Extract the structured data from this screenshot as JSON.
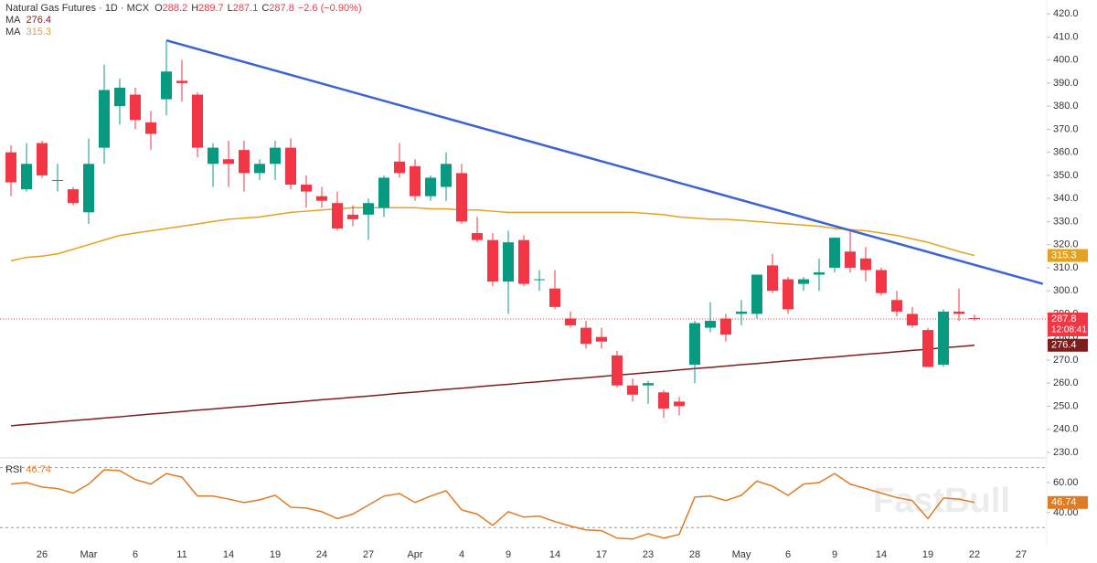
{
  "chart_data": [
    {
      "type": "candlestick",
      "title": "Natural Gas Futures · 1D · MCX",
      "ohlc_labels": [
        "O",
        "H",
        "L",
        "C"
      ],
      "change_label": "−2.6 (−0.90%)",
      "countdown": "12:08:41",
      "watermark": "FastBull",
      "categories": [
        null,
        null,
        "26",
        null,
        null,
        "Mar",
        null,
        null,
        "6",
        null,
        null,
        "11",
        null,
        null,
        "14",
        null,
        null,
        "19",
        null,
        null,
        "24",
        null,
        null,
        "27",
        null,
        null,
        "Apr",
        null,
        null,
        "4",
        null,
        null,
        "9",
        null,
        null,
        "14",
        null,
        null,
        "17",
        null,
        null,
        "23",
        null,
        null,
        "28",
        null,
        null,
        "May",
        null,
        null,
        "6",
        null,
        null,
        "9",
        null,
        null,
        "14",
        null,
        null,
        "19",
        null,
        null,
        "22",
        null,
        null,
        "27"
      ],
      "open": [
        360,
        344,
        364,
        348,
        344,
        334,
        362,
        380,
        385,
        373,
        383,
        391,
        385,
        355,
        357,
        361,
        351,
        355,
        362,
        346,
        341,
        338,
        333,
        333,
        336,
        356,
        354,
        341,
        345,
        351,
        325,
        322,
        304,
        322,
        305,
        301,
        288,
        284,
        280,
        272,
        259,
        259,
        256,
        252,
        268,
        284,
        288,
        290,
        290,
        311,
        305,
        303,
        307,
        310,
        317,
        314,
        309,
        296,
        290,
        283,
        268,
        291,
        288.2,
        null,
        null,
        null
      ],
      "high": [
        363,
        364,
        365,
        355,
        345,
        366,
        398,
        392,
        388,
        378,
        408,
        400,
        386,
        364,
        365,
        365,
        357,
        365,
        366,
        350,
        345,
        343,
        337,
        340,
        350,
        364,
        357,
        350,
        360,
        355,
        332,
        325,
        326,
        324,
        309,
        309,
        291,
        287,
        284,
        274,
        262,
        261,
        257,
        254,
        287,
        295,
        290,
        296,
        307,
        316,
        306,
        306,
        314,
        323,
        326,
        319,
        310,
        300,
        293,
        284,
        292,
        301,
        289.7,
        null,
        null,
        null
      ],
      "low": [
        341,
        343,
        349,
        343,
        337,
        329,
        355,
        372,
        370,
        361,
        376,
        382,
        358,
        345,
        345,
        343,
        348,
        348,
        344,
        336,
        336,
        326,
        328,
        322,
        332,
        349,
        339,
        339,
        339,
        329,
        321,
        302,
        290,
        302,
        300,
        292,
        284,
        275,
        275,
        258,
        252,
        251,
        245,
        246,
        260,
        282,
        278,
        285,
        288,
        299,
        290,
        300,
        300,
        308,
        308,
        304,
        298,
        289,
        284,
        267,
        267,
        287,
        287.1,
        null,
        null,
        null
      ],
      "close": [
        347,
        355,
        350,
        348,
        338,
        355,
        387,
        388,
        374,
        368,
        395,
        390,
        362,
        362,
        355,
        351,
        355,
        362,
        346,
        343,
        339,
        327,
        331,
        338,
        349,
        351,
        341,
        349,
        355,
        330,
        322,
        304,
        321,
        303,
        305,
        293,
        285,
        277,
        278,
        259,
        255,
        260,
        249,
        250,
        286,
        287,
        281,
        291,
        307,
        300,
        292,
        305,
        308,
        323,
        310,
        309,
        299,
        291,
        285,
        267,
        291,
        290,
        287.8,
        null,
        null,
        null
      ],
      "up_color": "#089981",
      "down_color": "#f23645",
      "moving_averages": [
        {
          "name": "MA",
          "color": "#7f1d1d",
          "values": [
            241.5,
            242.1,
            242.6,
            243.2,
            243.8,
            244.3,
            244.9,
            245.4,
            246.0,
            246.6,
            247.1,
            247.7,
            248.3,
            248.8,
            249.4,
            249.9,
            250.5,
            251.1,
            251.6,
            252.2,
            252.8,
            253.3,
            253.9,
            254.4,
            255.0,
            255.6,
            256.1,
            256.7,
            257.3,
            257.8,
            258.4,
            259.0,
            259.5,
            260.1,
            260.6,
            261.2,
            261.8,
            262.3,
            262.9,
            263.5,
            264.0,
            264.6,
            265.1,
            265.7,
            266.3,
            266.8,
            267.4,
            268.0,
            268.5,
            269.1,
            269.7,
            270.2,
            270.8,
            271.3,
            271.9,
            272.5,
            273.0,
            273.6,
            274.2,
            274.7,
            275.3,
            275.8,
            276.4,
            null,
            null,
            null
          ]
        },
        {
          "name": "MA",
          "color": "#e5a21f",
          "values": [
            313,
            314.5,
            315,
            316,
            318,
            320,
            322,
            324,
            325,
            326,
            327,
            328,
            329,
            330,
            331,
            331.5,
            332,
            333,
            334,
            334.5,
            335,
            335.5,
            336,
            336,
            336,
            336,
            336,
            335.5,
            335.5,
            335,
            335,
            334.5,
            334,
            334,
            334,
            334,
            334,
            334,
            334,
            334,
            334,
            333.5,
            333,
            332,
            331.5,
            331,
            331,
            330.5,
            330,
            329.5,
            329,
            328.5,
            328,
            327,
            326.5,
            326,
            325,
            324,
            322.5,
            321,
            319,
            317,
            315.3,
            null,
            null,
            null
          ]
        }
      ],
      "trendlines": [
        {
          "color": "#3b63d6",
          "start": {
            "x": 10,
            "y": 408.5
          },
          "end": {
            "x": 66.4,
            "y": 303
          }
        }
      ],
      "ylim": [
        228,
        426
      ],
      "yticks": [
        {
          "value": 230,
          "label": "230.0"
        },
        {
          "value": 240,
          "label": "240.0"
        },
        {
          "value": 250,
          "label": "250.0"
        },
        {
          "value": 260,
          "label": "260.0"
        },
        {
          "value": 270,
          "label": "270.0"
        },
        {
          "value": 280,
          "label": "280.0"
        },
        {
          "value": 290,
          "label": "290.0"
        },
        {
          "value": 300,
          "label": "300.0"
        },
        {
          "value": 310,
          "label": "310.0"
        },
        {
          "value": 320,
          "label": "320.0"
        },
        {
          "value": 330,
          "label": "330.0"
        },
        {
          "value": 340,
          "label": "340.0"
        },
        {
          "value": 350,
          "label": "350.0"
        },
        {
          "value": 360,
          "label": "360.0"
        },
        {
          "value": 370,
          "label": "370.0"
        },
        {
          "value": 380,
          "label": "380.0"
        },
        {
          "value": 390,
          "label": "390.0"
        },
        {
          "value": 400,
          "label": "400.0"
        },
        {
          "value": 410,
          "label": "410.0"
        },
        {
          "value": 420,
          "label": "420.0"
        }
      ]
    },
    {
      "type": "line",
      "name": "RSI",
      "color": "#e07b24",
      "values": [
        59,
        60,
        57,
        56,
        53,
        59,
        68.5,
        68,
        62,
        59,
        66,
        63.6,
        51,
        51,
        49,
        46.7,
        48.5,
        51.5,
        43.6,
        43,
        40.6,
        36,
        39,
        45,
        51,
        52.7,
        46.7,
        51,
        54.5,
        41.8,
        39,
        31.5,
        40.6,
        37,
        37.6,
        34,
        31,
        28.5,
        28,
        23,
        22.4,
        26,
        23,
        25.5,
        50.3,
        51,
        48,
        51.5,
        61,
        57.6,
        51.5,
        59,
        60,
        66,
        59,
        56,
        53,
        50,
        48,
        36,
        49.7,
        49,
        46.74,
        null,
        null,
        null
      ],
      "bands": [
        30,
        70
      ],
      "ylim": [
        18,
        74
      ],
      "yticks": [
        {
          "value": 40,
          "label": "40.00"
        },
        {
          "value": 60,
          "label": "60.00"
        }
      ]
    }
  ]
}
